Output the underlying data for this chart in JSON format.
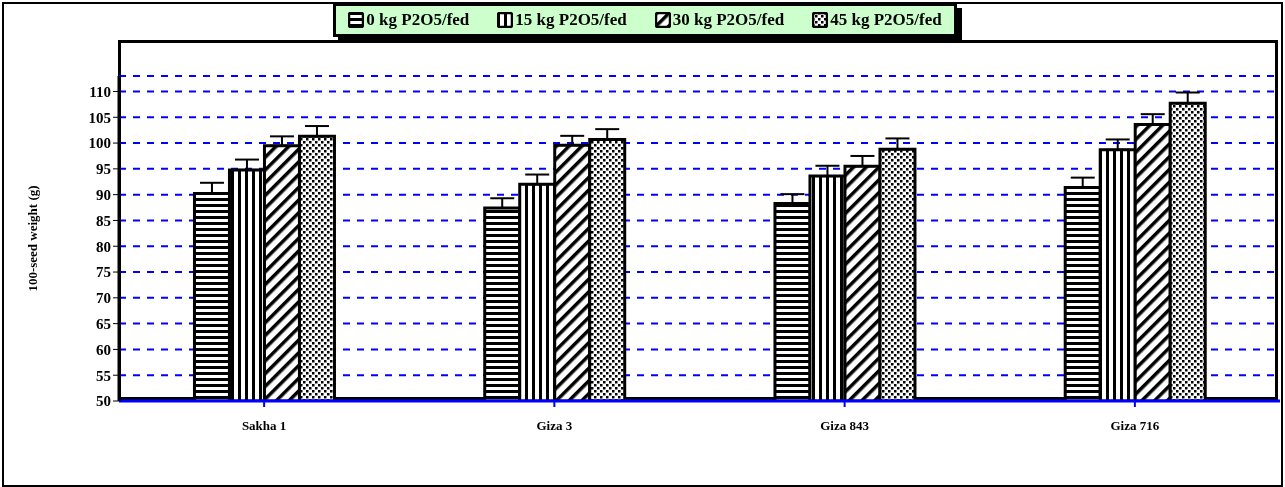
{
  "chart_data": {
    "type": "bar",
    "ylabel": "100-seed weight (g)",
    "categories": [
      "Sakha 1",
      "Giza 3",
      "Giza 843",
      "Giza 716"
    ],
    "series": [
      {
        "name": "0 kg P2O5/fed",
        "color": "#000000",
        "values": [
          90.2,
          87.4,
          88.3,
          91.4
        ],
        "errors": [
          [
            90.2,
            92.3
          ],
          [
            87.4,
            89.3
          ],
          [
            88.3,
            90.1
          ],
          [
            91.4,
            93.3
          ]
        ]
      },
      {
        "name": "15 kg P2O5/fed",
        "color": "#000000",
        "values": [
          94.8,
          92.0,
          93.6,
          98.7
        ],
        "errors": [
          [
            94.8,
            96.8
          ],
          [
            92.0,
            93.9
          ],
          [
            93.6,
            95.6
          ],
          [
            98.7,
            100.7
          ]
        ]
      },
      {
        "name": "30 kg P2O5/fed",
        "color": "#000000",
        "values": [
          99.5,
          99.6,
          95.5,
          103.6
        ],
        "errors": [
          [
            99.5,
            101.3
          ],
          [
            99.6,
            101.4
          ],
          [
            95.5,
            97.5
          ],
          [
            103.6,
            105.6
          ]
        ]
      },
      {
        "name": "45 kg P2O5/fed",
        "color": "#000000",
        "values": [
          101.3,
          100.7,
          98.8,
          107.7
        ],
        "errors": [
          [
            101.3,
            103.3
          ],
          [
            100.7,
            102.7
          ],
          [
            98.8,
            100.9
          ],
          [
            107.7,
            109.8
          ]
        ]
      }
    ],
    "ylim": [
      50,
      113
    ],
    "yticks": [
      50,
      55,
      60,
      65,
      70,
      75,
      80,
      85,
      90,
      95,
      100,
      105,
      110
    ],
    "grid": "y",
    "legend": "top"
  }
}
